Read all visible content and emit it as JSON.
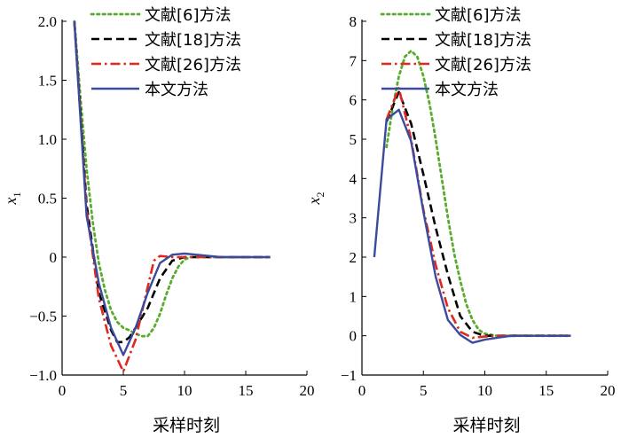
{
  "chart_data": [
    {
      "type": "line",
      "xlabel": "采样时刻",
      "ylabel": "x",
      "ylabel_sub": "1",
      "xlim": [
        0,
        20
      ],
      "ylim": [
        -1.0,
        2.0
      ],
      "xticks": [
        0,
        5,
        10,
        15,
        20
      ],
      "yticks": [
        -1.0,
        -0.5,
        0,
        0.5,
        1.0,
        1.5,
        2.0
      ],
      "ytick_labels": [
        "−1.0",
        "−0.5",
        "0",
        "0.5",
        "1.0",
        "1.5",
        "2.0"
      ],
      "legend_position": "top-right",
      "series": [
        {
          "name": "文献[6]方法",
          "color": "#5aac2e",
          "dash": "dotted",
          "points": [
            [
              1,
              2.0
            ],
            [
              1.5,
              1.35
            ],
            [
              2,
              0.75
            ],
            [
              2.5,
              0.3
            ],
            [
              3,
              -0.05
            ],
            [
              3.5,
              -0.28
            ],
            [
              4,
              -0.45
            ],
            [
              4.5,
              -0.55
            ],
            [
              5,
              -0.6
            ],
            [
              5.5,
              -0.62
            ],
            [
              6,
              -0.65
            ],
            [
              6.5,
              -0.67
            ],
            [
              7,
              -0.67
            ],
            [
              7.5,
              -0.6
            ],
            [
              8,
              -0.48
            ],
            [
              8.5,
              -0.32
            ],
            [
              9,
              -0.18
            ],
            [
              9.5,
              -0.08
            ],
            [
              10,
              -0.02
            ],
            [
              10.5,
              0
            ],
            [
              11,
              0
            ],
            [
              12,
              0
            ],
            [
              13,
              0
            ],
            [
              14,
              0
            ],
            [
              15,
              0
            ],
            [
              16,
              0
            ],
            [
              17,
              0
            ]
          ]
        },
        {
          "name": "文献[18]方法",
          "color": "#000000",
          "dash": "dashed",
          "points": [
            [
              1,
              2.0
            ],
            [
              2,
              0.45
            ],
            [
              3,
              -0.3
            ],
            [
              4,
              -0.62
            ],
            [
              4.5,
              -0.72
            ],
            [
              5,
              -0.72
            ],
            [
              5.5,
              -0.68
            ],
            [
              6,
              -0.6
            ],
            [
              7,
              -0.43
            ],
            [
              8,
              -0.18
            ],
            [
              9,
              -0.03
            ],
            [
              10,
              0
            ],
            [
              11,
              0
            ],
            [
              12,
              0
            ],
            [
              13,
              0
            ],
            [
              14,
              0
            ],
            [
              15,
              0
            ],
            [
              16,
              0
            ],
            [
              17,
              0
            ]
          ]
        },
        {
          "name": "文献[26]方法",
          "color": "#e0281e",
          "dash": "dashdot",
          "points": [
            [
              1,
              2.0
            ],
            [
              2,
              0.4
            ],
            [
              3,
              -0.35
            ],
            [
              4,
              -0.75
            ],
            [
              5,
              -0.97
            ],
            [
              6,
              -0.7
            ],
            [
              7,
              -0.25
            ],
            [
              7.5,
              -0.03
            ],
            [
              8,
              0.01
            ],
            [
              9,
              0
            ],
            [
              10,
              0
            ],
            [
              11,
              0
            ],
            [
              12,
              0
            ],
            [
              13,
              0
            ],
            [
              14,
              0
            ],
            [
              15,
              0
            ],
            [
              16,
              0
            ],
            [
              17,
              0
            ]
          ]
        },
        {
          "name": "本文方法",
          "color": "#3a4a9c",
          "dash": "solid",
          "points": [
            [
              1,
              2.0
            ],
            [
              2,
              0.35
            ],
            [
              3,
              -0.22
            ],
            [
              4,
              -0.6
            ],
            [
              5,
              -0.83
            ],
            [
              6,
              -0.6
            ],
            [
              7,
              -0.3
            ],
            [
              8,
              -0.05
            ],
            [
              9,
              0.02
            ],
            [
              10,
              0.03
            ],
            [
              11,
              0.02
            ],
            [
              12,
              0.01
            ],
            [
              13,
              0
            ],
            [
              14,
              0
            ],
            [
              15,
              0
            ],
            [
              16,
              0
            ],
            [
              17,
              0
            ]
          ]
        }
      ]
    },
    {
      "type": "line",
      "xlabel": "采样时刻",
      "ylabel": "x",
      "ylabel_sub": "2",
      "xlim": [
        0,
        20
      ],
      "ylim": [
        -1,
        8
      ],
      "xticks": [
        0,
        5,
        10,
        15,
        20
      ],
      "yticks": [
        -1,
        0,
        1,
        2,
        3,
        4,
        5,
        6,
        7,
        8
      ],
      "ytick_labels": [
        "−1",
        "0",
        "1",
        "2",
        "3",
        "4",
        "5",
        "6",
        "7",
        "8"
      ],
      "legend_position": "top-right",
      "series": [
        {
          "name": "文献[6]方法",
          "color": "#5aac2e",
          "dash": "dotted",
          "points": [
            [
              2,
              4.8
            ],
            [
              2.5,
              5.8
            ],
            [
              3,
              6.6
            ],
            [
              3.5,
              7.1
            ],
            [
              4,
              7.25
            ],
            [
              4.5,
              7.1
            ],
            [
              5,
              6.6
            ],
            [
              5.5,
              5.9
            ],
            [
              6,
              5.0
            ],
            [
              6.5,
              4.0
            ],
            [
              7,
              3.0
            ],
            [
              7.5,
              2.1
            ],
            [
              8,
              1.4
            ],
            [
              8.5,
              0.8
            ],
            [
              9,
              0.4
            ],
            [
              9.5,
              0.15
            ],
            [
              10,
              0.05
            ],
            [
              11,
              0
            ],
            [
              12,
              0
            ],
            [
              13,
              0
            ],
            [
              14,
              0
            ],
            [
              15,
              0
            ],
            [
              16,
              0
            ],
            [
              17,
              0
            ]
          ]
        },
        {
          "name": "文献[18]方法",
          "color": "#000000",
          "dash": "dashed",
          "points": [
            [
              2,
              5.45
            ],
            [
              3,
              6.2
            ],
            [
              4,
              5.4
            ],
            [
              5,
              4.1
            ],
            [
              6,
              2.75
            ],
            [
              7,
              1.55
            ],
            [
              8,
              0.5
            ],
            [
              9,
              0.1
            ],
            [
              10,
              0
            ],
            [
              11,
              0
            ],
            [
              12,
              0
            ],
            [
              13,
              0
            ],
            [
              14,
              0
            ],
            [
              15,
              0
            ],
            [
              16,
              0
            ],
            [
              17,
              0
            ]
          ]
        },
        {
          "name": "文献[26]方法",
          "color": "#e0281e",
          "dash": "dashdot",
          "points": [
            [
              2,
              5.5
            ],
            [
              3,
              6.3
            ],
            [
              4,
              5.0
            ],
            [
              5,
              3.2
            ],
            [
              6,
              1.8
            ],
            [
              7,
              0.7
            ],
            [
              8,
              0.1
            ],
            [
              9,
              -0.05
            ],
            [
              10,
              -0.02
            ],
            [
              11,
              0
            ],
            [
              12,
              0
            ],
            [
              13,
              0
            ],
            [
              14,
              0
            ],
            [
              15,
              0
            ],
            [
              16,
              0
            ],
            [
              17,
              0
            ]
          ]
        },
        {
          "name": "本文方法",
          "color": "#3a4a9c",
          "dash": "solid",
          "points": [
            [
              1,
              2.0
            ],
            [
              2,
              5.5
            ],
            [
              3,
              5.75
            ],
            [
              4,
              4.95
            ],
            [
              5,
              3.15
            ],
            [
              6,
              1.5
            ],
            [
              7,
              0.4
            ],
            [
              8,
              0.02
            ],
            [
              9,
              -0.18
            ],
            [
              10,
              -0.1
            ],
            [
              11,
              -0.05
            ],
            [
              12,
              -0.01
            ],
            [
              13,
              0
            ],
            [
              14,
              0
            ],
            [
              15,
              0
            ],
            [
              16,
              0
            ],
            [
              17,
              0
            ]
          ]
        }
      ]
    }
  ]
}
